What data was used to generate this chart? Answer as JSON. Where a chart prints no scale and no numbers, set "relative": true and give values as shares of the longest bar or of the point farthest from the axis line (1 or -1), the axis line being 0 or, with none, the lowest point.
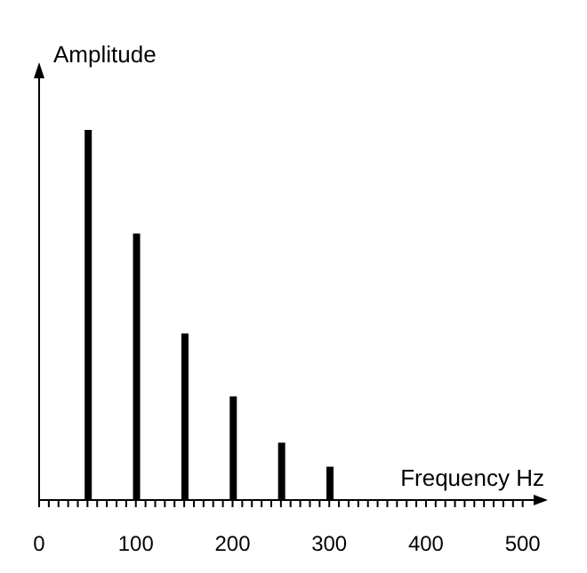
{
  "chart_data": {
    "type": "bar",
    "xlabel": "Frequency Hz",
    "ylabel": "Amplitude",
    "relative": true,
    "x": [
      50,
      100,
      150,
      200,
      250,
      300
    ],
    "values": [
      1,
      0.72,
      0.45,
      0.28,
      0.155,
      0.09
    ],
    "color": "#000000",
    "xlim": [
      0,
      515
    ],
    "xticks": [
      0,
      {
        "value": 10,
        "label": null
      },
      {
        "value": 20,
        "label": null
      },
      {
        "value": 30,
        "label": null
      },
      {
        "value": 40,
        "label": null
      },
      {
        "value": 50,
        "label": null
      },
      {
        "value": 60,
        "label": null
      },
      {
        "value": 70,
        "label": null
      },
      {
        "value": 80,
        "label": null
      },
      {
        "value": 90,
        "label": null
      },
      100,
      {
        "value": 110,
        "label": null
      },
      {
        "value": 120,
        "label": null
      },
      {
        "value": 130,
        "label": null
      },
      {
        "value": 140,
        "label": null
      },
      {
        "value": 150,
        "label": null
      },
      {
        "value": 160,
        "label": null
      },
      {
        "value": 170,
        "label": null
      },
      {
        "value": 180,
        "label": null
      },
      {
        "value": 190,
        "label": null
      },
      200,
      {
        "value": 210,
        "label": null
      },
      {
        "value": 220,
        "label": null
      },
      {
        "value": 230,
        "label": null
      },
      {
        "value": 240,
        "label": null
      },
      {
        "value": 250,
        "label": null
      },
      {
        "value": 260,
        "label": null
      },
      {
        "value": 270,
        "label": null
      },
      {
        "value": 280,
        "label": null
      },
      {
        "value": 290,
        "label": null
      },
      300,
      {
        "value": 310,
        "label": null
      },
      {
        "value": 320,
        "label": null
      },
      {
        "value": 330,
        "label": null
      },
      {
        "value": 340,
        "label": null
      },
      {
        "value": 350,
        "label": null
      },
      {
        "value": 360,
        "label": null
      },
      {
        "value": 370,
        "label": null
      },
      {
        "value": 380,
        "label": null
      },
      {
        "value": 390,
        "label": null
      },
      400,
      {
        "value": 410,
        "label": null
      },
      {
        "value": 420,
        "label": null
      },
      {
        "value": 430,
        "label": null
      },
      {
        "value": 440,
        "label": null
      },
      {
        "value": 450,
        "label": null
      },
      {
        "value": 460,
        "label": null
      },
      {
        "value": 470,
        "label": null
      },
      {
        "value": 480,
        "label": null
      },
      {
        "value": 490,
        "label": null
      },
      500
    ],
    "grid": false,
    "legend": false
  }
}
